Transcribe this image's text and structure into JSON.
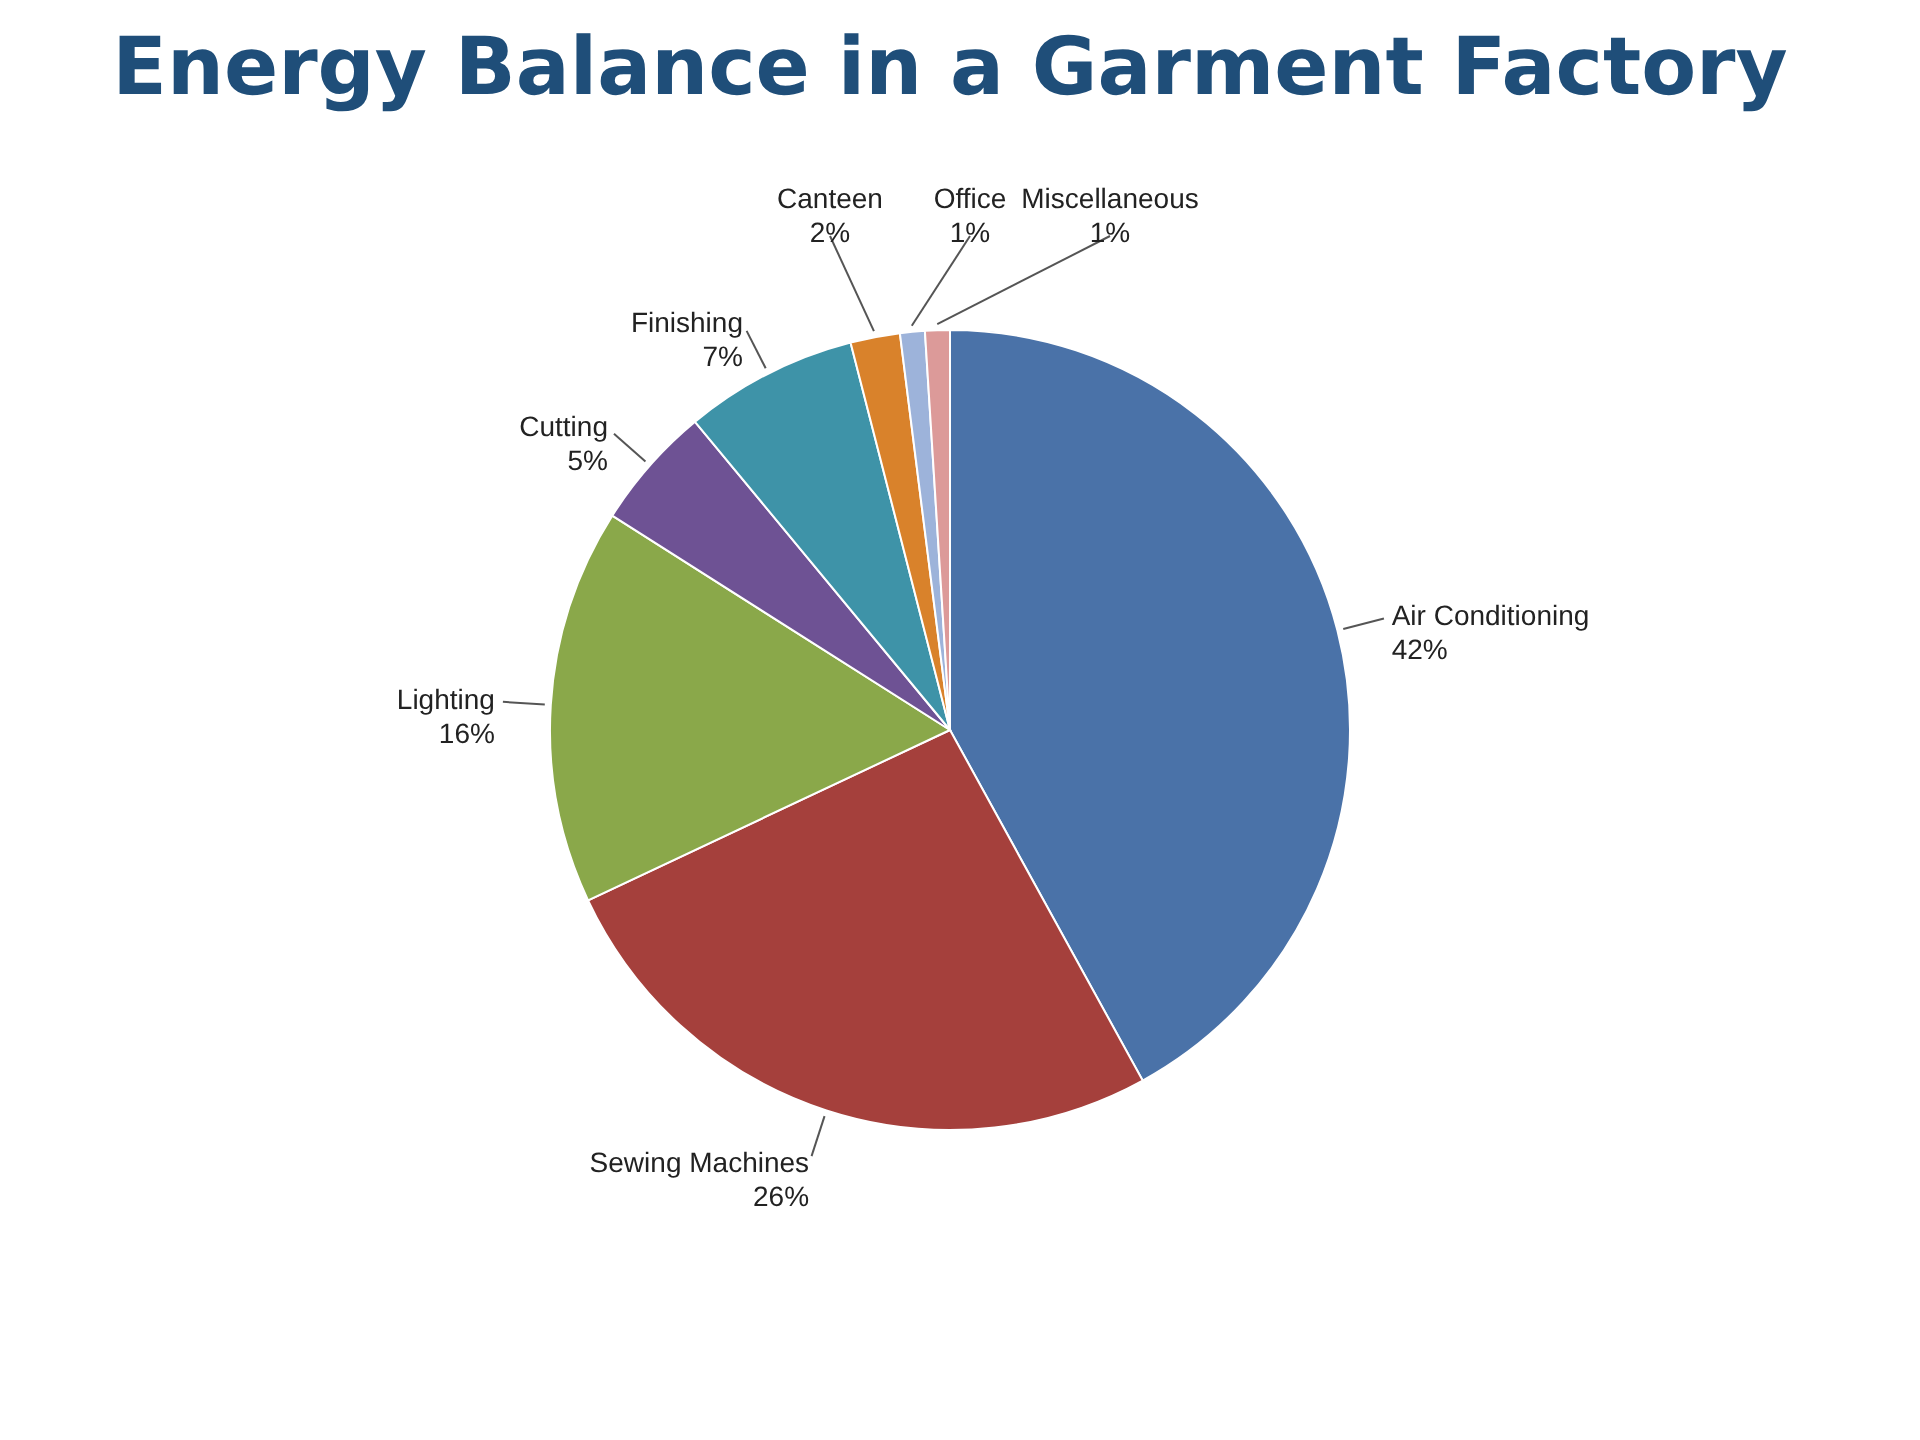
{
  "chart_data": {
    "type": "pie",
    "title": "Energy Balance in a Garment Factory",
    "categories": [
      "Air Conditioning",
      "Sewing Machines",
      "Lighting",
      "Cutting",
      "Finishing",
      "Canteen",
      "Office",
      "Miscellaneous"
    ],
    "values": [
      42,
      26,
      16,
      5,
      7,
      2,
      1,
      1
    ],
    "value_labels": [
      "42%",
      "26%",
      "16%",
      "5%",
      "7%",
      "2%",
      "1%",
      "1%"
    ],
    "colors": [
      "#4a72a8",
      "#a5403c",
      "#8aa84a",
      "#6e5294",
      "#3e93a8",
      "#d9822b",
      "#9db3da",
      "#dc9a99"
    ]
  }
}
